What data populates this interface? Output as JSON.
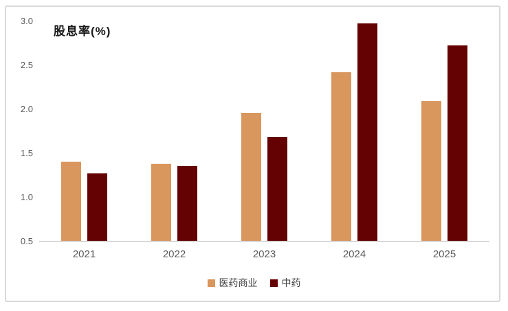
{
  "chart_data": {
    "type": "bar",
    "title": "股息率(%)",
    "categories": [
      "2021",
      "2022",
      "2023",
      "2024",
      "2025"
    ],
    "series": [
      {
        "name": "医药商业",
        "color": "#D9965D",
        "values": [
          1.41,
          1.38,
          1.96,
          2.42,
          2.09
        ]
      },
      {
        "name": "中药",
        "color": "#640103",
        "values": [
          1.27,
          1.36,
          1.69,
          2.98,
          2.73
        ]
      }
    ],
    "ylim": [
      0.5,
      3.0
    ],
    "ytick_labels": [
      "3.0",
      "2.5",
      "2.0",
      "1.5",
      "1.0",
      "0.5"
    ],
    "yticks": [
      3.0,
      2.5,
      2.0,
      1.5,
      1.0,
      0.5
    ],
    "grid": false,
    "legend_position": "bottom",
    "colors": {
      "axis_line": "#d9d9d9",
      "frame_border": "#d9d9d9",
      "tick_text": "#595959",
      "legend_text": "#404040",
      "title_text": "#1a1a1a"
    }
  }
}
